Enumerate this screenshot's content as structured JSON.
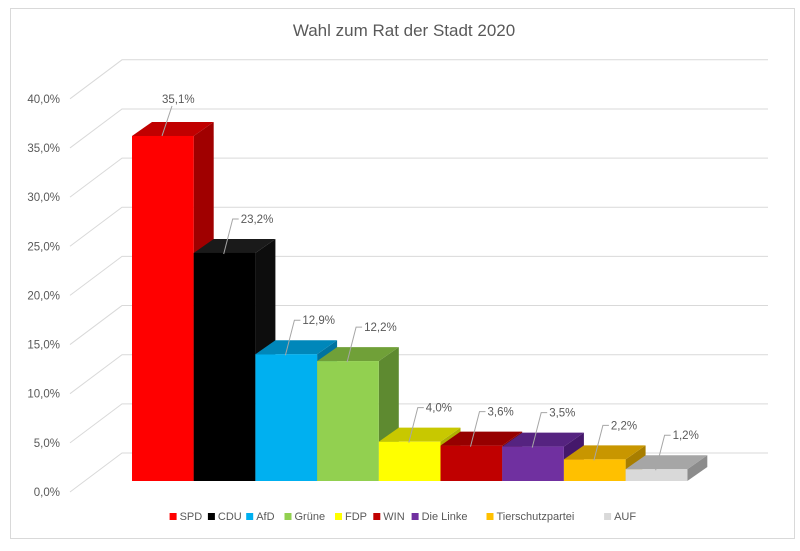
{
  "chart_data": {
    "type": "bar",
    "style": "3d-clustered-column",
    "title": "Wahl zum Rat der Stadt 2020",
    "xlabel": "",
    "ylabel": "",
    "ylim": [
      0,
      40
    ],
    "yticks": [
      0,
      5,
      10,
      15,
      20,
      25,
      30,
      35,
      40
    ],
    "ytick_labels": [
      "0,0%",
      "5,0%",
      "10,0%",
      "15,0%",
      "20,0%",
      "25,0%",
      "30,0%",
      "35,0%",
      "40,0%"
    ],
    "grid": true,
    "legend_position": "bottom",
    "categories": [
      "SPD",
      "CDU",
      "AfD",
      "Grüne",
      "FDP",
      "WIN",
      "Die Linke",
      "Tierschutzpartei",
      "AUF"
    ],
    "values": [
      35.1,
      23.2,
      12.9,
      12.2,
      4.0,
      3.6,
      3.5,
      2.2,
      1.2
    ],
    "data_labels": [
      "35,1%",
      "23,2%",
      "12,9%",
      "12,2%",
      "4,0%",
      "3,6%",
      "3,5%",
      "2,2%",
      "1,2%"
    ],
    "colors": [
      "#ff0000",
      "#000000",
      "#00b0f0",
      "#92d050",
      "#ffff00",
      "#c00000",
      "#7030a0",
      "#ffc000",
      "#d9d9d9"
    ],
    "top_colors": [
      "#c00000",
      "#1a1a1a",
      "#0087ba",
      "#70a038",
      "#c8c800",
      "#960000",
      "#552380",
      "#c89600",
      "#a6a6a6"
    ],
    "side_colors": [
      "#a00000",
      "#0d0d0d",
      "#0073a0",
      "#5e8a30",
      "#b0b000",
      "#800000",
      "#45186b",
      "#a87e00",
      "#8c8c8c"
    ]
  }
}
